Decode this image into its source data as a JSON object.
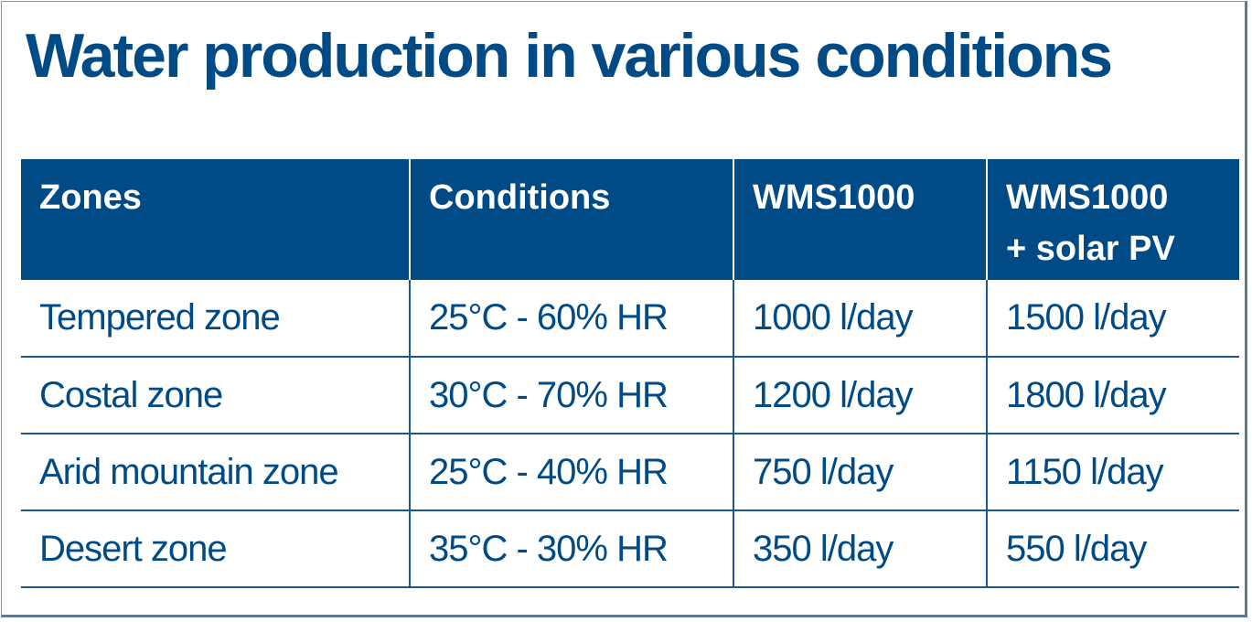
{
  "title": "Water production in various conditions",
  "table": {
    "headers": [
      "Zones",
      "Conditions",
      "WMS1000",
      "WMS1000\n+ solar PV"
    ],
    "rows": [
      [
        "Tempered zone",
        "25°C - 60% HR",
        "1000 l/day",
        "1500 l/day"
      ],
      [
        "Costal zone",
        "30°C - 70% HR",
        "1200 l/day",
        "1800 l/day"
      ],
      [
        "Arid mountain zone",
        "25°C - 40% HR",
        "750 l/day",
        "1150 l/day"
      ],
      [
        "Desert zone",
        "35°C - 30% HR",
        "350 l/day",
        "550 l/day"
      ]
    ]
  },
  "colors": {
    "primary": "#004a86",
    "text": "#004a86",
    "header_text": "#ffffff",
    "rule": "#1b5891"
  }
}
